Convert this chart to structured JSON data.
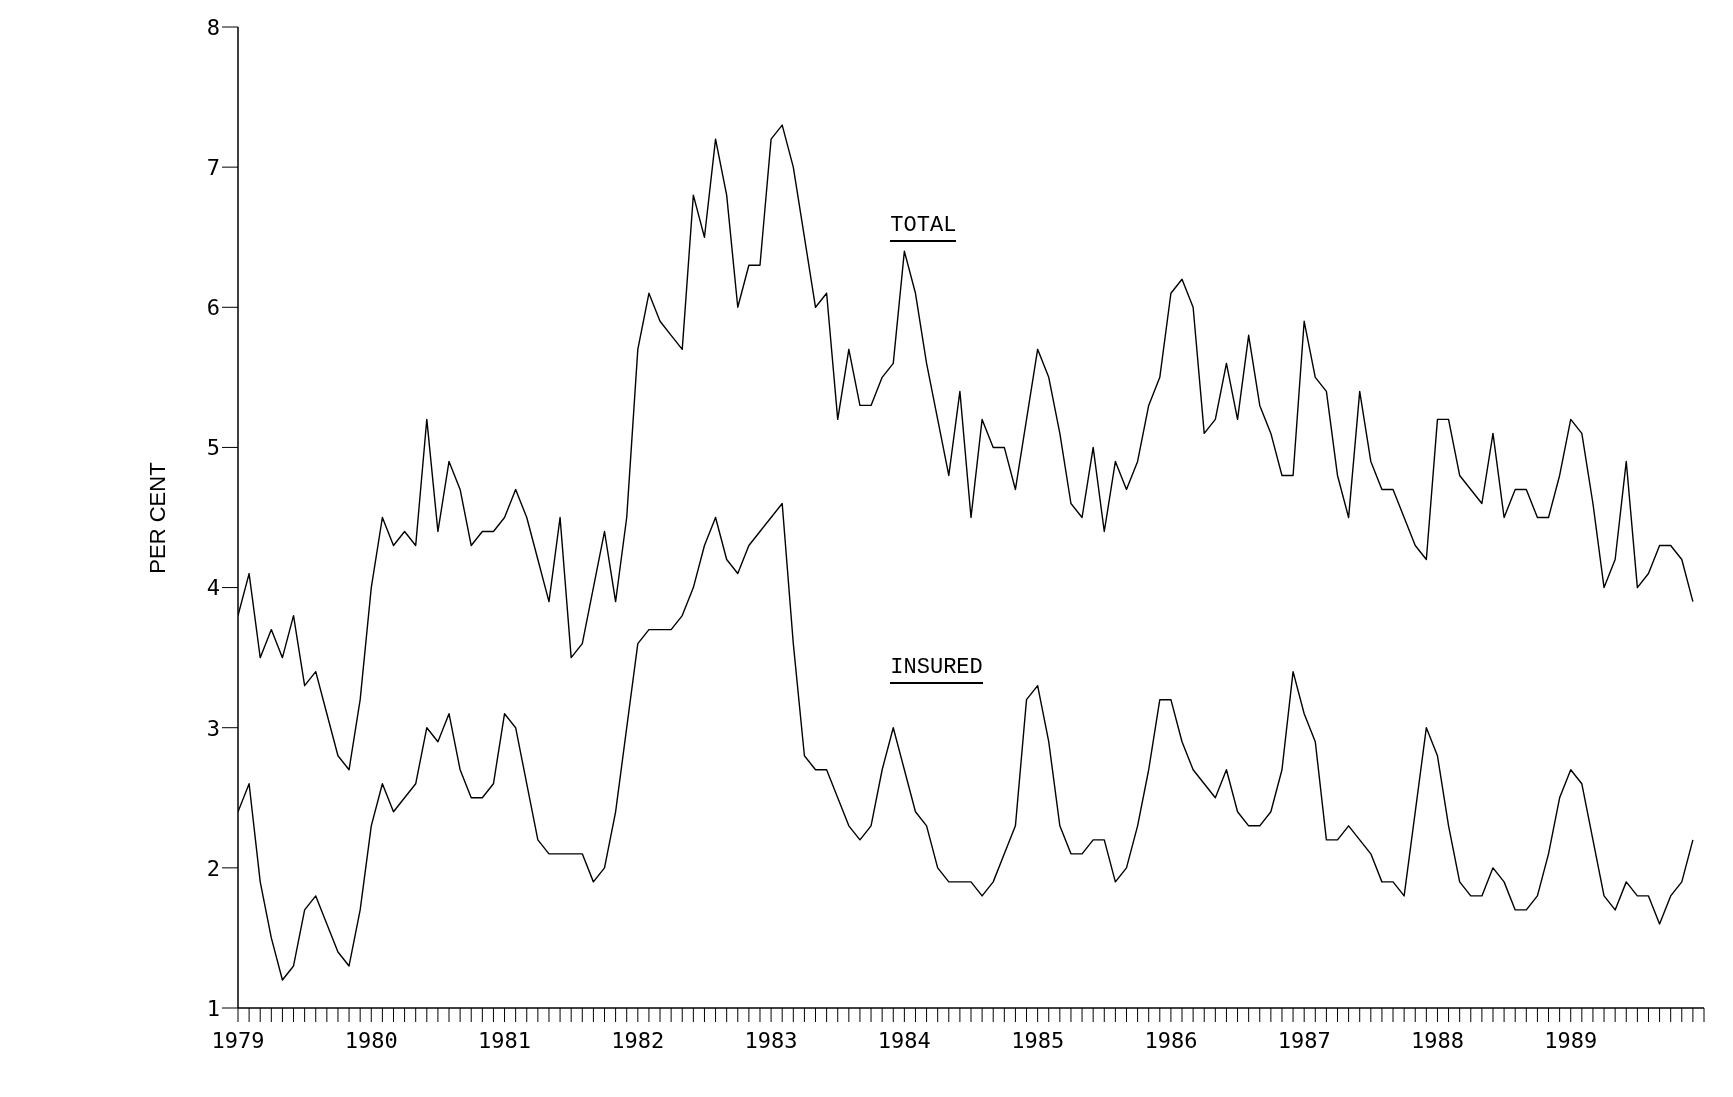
{
  "chart_data": {
    "type": "line",
    "ylabel": "PER CENT",
    "ylim": [
      1,
      8
    ],
    "yticks": [
      1,
      2,
      3,
      4,
      5,
      6,
      7,
      8
    ],
    "xlim": [
      "1979-01",
      "1990-01"
    ],
    "marker": "none",
    "line_style": "solid",
    "x": [
      "1979-01",
      "1979-02",
      "1979-03",
      "1979-04",
      "1979-05",
      "1979-06",
      "1979-07",
      "1979-08",
      "1979-09",
      "1979-10",
      "1979-11",
      "1979-12",
      "1980-01",
      "1980-02",
      "1980-03",
      "1980-04",
      "1980-05",
      "1980-06",
      "1980-07",
      "1980-08",
      "1980-09",
      "1980-10",
      "1980-11",
      "1980-12",
      "1981-01",
      "1981-02",
      "1981-03",
      "1981-04",
      "1981-05",
      "1981-06",
      "1981-07",
      "1981-08",
      "1981-09",
      "1981-10",
      "1981-11",
      "1981-12",
      "1982-01",
      "1982-02",
      "1982-03",
      "1982-04",
      "1982-05",
      "1982-06",
      "1982-07",
      "1982-08",
      "1982-09",
      "1982-10",
      "1982-11",
      "1982-12",
      "1983-01",
      "1983-02",
      "1983-03",
      "1983-04",
      "1983-05",
      "1983-06",
      "1983-07",
      "1983-08",
      "1983-09",
      "1983-10",
      "1983-11",
      "1983-12",
      "1984-01",
      "1984-02",
      "1984-03",
      "1984-04",
      "1984-05",
      "1984-06",
      "1984-07",
      "1984-08",
      "1984-09",
      "1984-10",
      "1984-11",
      "1984-12",
      "1985-01",
      "1985-02",
      "1985-03",
      "1985-04",
      "1985-05",
      "1985-06",
      "1985-07",
      "1985-08",
      "1985-09",
      "1985-10",
      "1985-11",
      "1985-12",
      "1986-01",
      "1986-02",
      "1986-03",
      "1986-04",
      "1986-05",
      "1986-06",
      "1986-07",
      "1986-08",
      "1986-09",
      "1986-10",
      "1986-11",
      "1986-12",
      "1987-01",
      "1987-02",
      "1987-03",
      "1987-04",
      "1987-05",
      "1987-06",
      "1987-07",
      "1987-08",
      "1987-09",
      "1987-10",
      "1987-11",
      "1987-12",
      "1988-01",
      "1988-02",
      "1988-03",
      "1988-04",
      "1988-05",
      "1988-06",
      "1988-07",
      "1988-08",
      "1988-09",
      "1988-10",
      "1988-11",
      "1988-12",
      "1989-01",
      "1989-02",
      "1989-03",
      "1989-04",
      "1989-05",
      "1989-06",
      "1989-07",
      "1989-08",
      "1989-09",
      "1989-10",
      "1989-11",
      "1989-12"
    ],
    "xticks": [
      {
        "value": "1979-01",
        "label": "1979"
      },
      {
        "value": "1979-02",
        "label": null
      },
      {
        "value": "1979-03",
        "label": null
      },
      {
        "value": "1979-04",
        "label": null
      },
      {
        "value": "1979-05",
        "label": null
      },
      {
        "value": "1979-06",
        "label": null
      },
      {
        "value": "1979-07",
        "label": null
      },
      {
        "value": "1979-08",
        "label": null
      },
      {
        "value": "1979-09",
        "label": null
      },
      {
        "value": "1979-10",
        "label": null
      },
      {
        "value": "1979-11",
        "label": null
      },
      {
        "value": "1979-12",
        "label": null
      },
      {
        "value": "1980-01",
        "label": "1980"
      },
      {
        "value": "1980-02",
        "label": null
      },
      {
        "value": "1980-03",
        "label": null
      },
      {
        "value": "1980-04",
        "label": null
      },
      {
        "value": "1980-05",
        "label": null
      },
      {
        "value": "1980-06",
        "label": null
      },
      {
        "value": "1980-07",
        "label": null
      },
      {
        "value": "1980-08",
        "label": null
      },
      {
        "value": "1980-09",
        "label": null
      },
      {
        "value": "1980-10",
        "label": null
      },
      {
        "value": "1980-11",
        "label": null
      },
      {
        "value": "1980-12",
        "label": null
      },
      {
        "value": "1981-01",
        "label": "1981"
      },
      {
        "value": "1981-02",
        "label": null
      },
      {
        "value": "1981-03",
        "label": null
      },
      {
        "value": "1981-04",
        "label": null
      },
      {
        "value": "1981-05",
        "label": null
      },
      {
        "value": "1981-06",
        "label": null
      },
      {
        "value": "1981-07",
        "label": null
      },
      {
        "value": "1981-08",
        "label": null
      },
      {
        "value": "1981-09",
        "label": null
      },
      {
        "value": "1981-10",
        "label": null
      },
      {
        "value": "1981-11",
        "label": null
      },
      {
        "value": "1981-12",
        "label": null
      },
      {
        "value": "1982-01",
        "label": "1982"
      },
      {
        "value": "1982-02",
        "label": null
      },
      {
        "value": "1982-03",
        "label": null
      },
      {
        "value": "1982-04",
        "label": null
      },
      {
        "value": "1982-05",
        "label": null
      },
      {
        "value": "1982-06",
        "label": null
      },
      {
        "value": "1982-07",
        "label": null
      },
      {
        "value": "1982-08",
        "label": null
      },
      {
        "value": "1982-09",
        "label": null
      },
      {
        "value": "1982-10",
        "label": null
      },
      {
        "value": "1982-11",
        "label": null
      },
      {
        "value": "1982-12",
        "label": null
      },
      {
        "value": "1983-01",
        "label": "1983"
      },
      {
        "value": "1983-02",
        "label": null
      },
      {
        "value": "1983-03",
        "label": null
      },
      {
        "value": "1983-04",
        "label": null
      },
      {
        "value": "1983-05",
        "label": null
      },
      {
        "value": "1983-06",
        "label": null
      },
      {
        "value": "1983-07",
        "label": null
      },
      {
        "value": "1983-08",
        "label": null
      },
      {
        "value": "1983-09",
        "label": null
      },
      {
        "value": "1983-10",
        "label": null
      },
      {
        "value": "1983-11",
        "label": null
      },
      {
        "value": "1983-12",
        "label": null
      },
      {
        "value": "1984-01",
        "label": "1984"
      },
      {
        "value": "1984-02",
        "label": null
      },
      {
        "value": "1984-03",
        "label": null
      },
      {
        "value": "1984-04",
        "label": null
      },
      {
        "value": "1984-05",
        "label": null
      },
      {
        "value": "1984-06",
        "label": null
      },
      {
        "value": "1984-07",
        "label": null
      },
      {
        "value": "1984-08",
        "label": null
      },
      {
        "value": "1984-09",
        "label": null
      },
      {
        "value": "1984-10",
        "label": null
      },
      {
        "value": "1984-11",
        "label": null
      },
      {
        "value": "1984-12",
        "label": null
      },
      {
        "value": "1985-01",
        "label": "1985"
      },
      {
        "value": "1985-02",
        "label": null
      },
      {
        "value": "1985-03",
        "label": null
      },
      {
        "value": "1985-04",
        "label": null
      },
      {
        "value": "1985-05",
        "label": null
      },
      {
        "value": "1985-06",
        "label": null
      },
      {
        "value": "1985-07",
        "label": null
      },
      {
        "value": "1985-08",
        "label": null
      },
      {
        "value": "1985-09",
        "label": null
      },
      {
        "value": "1985-10",
        "label": null
      },
      {
        "value": "1985-11",
        "label": null
      },
      {
        "value": "1985-12",
        "label": null
      },
      {
        "value": "1986-01",
        "label": "1986"
      },
      {
        "value": "1986-02",
        "label": null
      },
      {
        "value": "1986-03",
        "label": null
      },
      {
        "value": "1986-04",
        "label": null
      },
      {
        "value": "1986-05",
        "label": null
      },
      {
        "value": "1986-06",
        "label": null
      },
      {
        "value": "1986-07",
        "label": null
      },
      {
        "value": "1986-08",
        "label": null
      },
      {
        "value": "1986-09",
        "label": null
      },
      {
        "value": "1986-10",
        "label": null
      },
      {
        "value": "1986-11",
        "label": null
      },
      {
        "value": "1986-12",
        "label": null
      },
      {
        "value": "1987-01",
        "label": "1987"
      },
      {
        "value": "1987-02",
        "label": null
      },
      {
        "value": "1987-03",
        "label": null
      },
      {
        "value": "1987-04",
        "label": null
      },
      {
        "value": "1987-05",
        "label": null
      },
      {
        "value": "1987-06",
        "label": null
      },
      {
        "value": "1987-07",
        "label": null
      },
      {
        "value": "1987-08",
        "label": null
      },
      {
        "value": "1987-09",
        "label": null
      },
      {
        "value": "1987-10",
        "label": null
      },
      {
        "value": "1987-11",
        "label": null
      },
      {
        "value": "1987-12",
        "label": null
      },
      {
        "value": "1988-01",
        "label": "1988"
      },
      {
        "value": "1988-02",
        "label": null
      },
      {
        "value": "1988-03",
        "label": null
      },
      {
        "value": "1988-04",
        "label": null
      },
      {
        "value": "1988-05",
        "label": null
      },
      {
        "value": "1988-06",
        "label": null
      },
      {
        "value": "1988-07",
        "label": null
      },
      {
        "value": "1988-08",
        "label": null
      },
      {
        "value": "1988-09",
        "label": null
      },
      {
        "value": "1988-10",
        "label": null
      },
      {
        "value": "1988-11",
        "label": null
      },
      {
        "value": "1988-12",
        "label": null
      },
      {
        "value": "1989-01",
        "label": "1989"
      },
      {
        "value": "1989-02",
        "label": null
      },
      {
        "value": "1989-03",
        "label": null
      },
      {
        "value": "1989-04",
        "label": null
      },
      {
        "value": "1989-05",
        "label": null
      },
      {
        "value": "1989-06",
        "label": null
      },
      {
        "value": "1989-07",
        "label": null
      },
      {
        "value": "1989-08",
        "label": null
      },
      {
        "value": "1989-09",
        "label": null
      },
      {
        "value": "1989-10",
        "label": null
      },
      {
        "value": "1989-11",
        "label": null
      },
      {
        "value": "1989-12",
        "label": null
      },
      {
        "value": "1990-01",
        "label": null
      }
    ],
    "series": [
      {
        "name": "TOTAL",
        "color": "#000000",
        "values": [
          3.8,
          4.1,
          3.5,
          3.7,
          3.5,
          3.8,
          3.3,
          3.4,
          3.1,
          2.8,
          2.7,
          3.2,
          4.0,
          4.5,
          4.3,
          4.4,
          4.3,
          5.2,
          4.4,
          4.9,
          4.7,
          4.3,
          4.4,
          4.4,
          4.5,
          4.7,
          4.5,
          4.2,
          3.9,
          4.5,
          3.5,
          3.6,
          4.0,
          4.4,
          3.9,
          4.5,
          5.7,
          6.1,
          5.9,
          5.8,
          5.7,
          6.8,
          6.5,
          7.2,
          6.8,
          6.0,
          6.3,
          6.3,
          7.2,
          7.3,
          7.0,
          6.5,
          6.0,
          6.1,
          5.2,
          5.7,
          5.3,
          5.3,
          5.5,
          5.6,
          6.4,
          6.1,
          5.6,
          5.2,
          4.8,
          5.4,
          4.5,
          5.2,
          5.0,
          5.0,
          4.7,
          5.2,
          5.7,
          5.5,
          5.1,
          4.6,
          4.5,
          5.0,
          4.4,
          4.9,
          4.7,
          4.9,
          5.3,
          5.5,
          6.1,
          6.2,
          6.0,
          5.1,
          5.2,
          5.6,
          5.2,
          5.8,
          5.3,
          5.1,
          4.8,
          4.8,
          5.9,
          5.5,
          5.4,
          4.8,
          4.5,
          5.4,
          4.9,
          4.7,
          4.7,
          4.5,
          4.3,
          4.2,
          5.2,
          5.2,
          4.8,
          4.7,
          4.6,
          5.1,
          4.5,
          4.7,
          4.7,
          4.5,
          4.5,
          4.8,
          5.2,
          5.1,
          4.6,
          4.0,
          4.2,
          4.9,
          4.0,
          4.1,
          4.3,
          4.3,
          4.2,
          3.9
        ]
      },
      {
        "name": "INSURED",
        "color": "#000000",
        "values": [
          2.4,
          2.6,
          1.9,
          1.5,
          1.2,
          1.3,
          1.7,
          1.8,
          1.6,
          1.4,
          1.3,
          1.7,
          2.3,
          2.6,
          2.4,
          2.5,
          2.6,
          3.0,
          2.9,
          3.1,
          2.7,
          2.5,
          2.5,
          2.6,
          3.1,
          3.0,
          2.6,
          2.2,
          2.1,
          2.1,
          2.1,
          2.1,
          1.9,
          2.0,
          2.4,
          3.0,
          3.6,
          3.7,
          3.7,
          3.7,
          3.8,
          4.0,
          4.3,
          4.5,
          4.2,
          4.1,
          4.3,
          4.4,
          4.5,
          4.6,
          3.6,
          2.8,
          2.7,
          2.7,
          2.5,
          2.3,
          2.2,
          2.3,
          2.7,
          3.0,
          2.7,
          2.4,
          2.3,
          2.0,
          1.9,
          1.9,
          1.9,
          1.8,
          1.9,
          2.1,
          2.3,
          3.2,
          3.3,
          2.9,
          2.3,
          2.1,
          2.1,
          2.2,
          2.2,
          1.9,
          2.0,
          2.3,
          2.7,
          3.2,
          3.2,
          2.9,
          2.7,
          2.6,
          2.5,
          2.7,
          2.4,
          2.3,
          2.3,
          2.4,
          2.7,
          3.4,
          3.1,
          2.9,
          2.2,
          2.2,
          2.3,
          2.2,
          2.1,
          1.9,
          1.9,
          1.8,
          2.4,
          3.0,
          2.8,
          2.3,
          1.9,
          1.8,
          1.8,
          2.0,
          1.9,
          1.7,
          1.7,
          1.8,
          2.1,
          2.5,
          2.7,
          2.6,
          2.2,
          1.8,
          1.7,
          1.9,
          1.8,
          1.8,
          1.6,
          1.8,
          1.9,
          2.2
        ]
      }
    ]
  }
}
